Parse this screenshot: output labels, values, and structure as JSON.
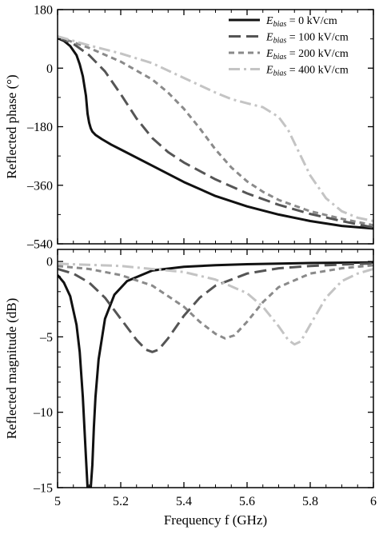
{
  "chart_data": [
    {
      "type": "line",
      "ylabel": "Reflected phase (°)",
      "xlim": [
        5,
        6
      ],
      "ylim": [
        -540,
        180
      ],
      "yticks": [
        180,
        0,
        -180,
        -360,
        -540
      ],
      "ytick_labels": [
        "180",
        "0",
        "–180",
        "–360",
        "–540"
      ],
      "legend_position": "top-right",
      "series": [
        {
          "key": "e0",
          "color": "#111111",
          "dash": "solid",
          "legend": {
            "sym": "E",
            "sub": "bias",
            "rest": " = 0 kV/cm"
          },
          "x": [
            5.0,
            5.02,
            5.04,
            5.06,
            5.07,
            5.08,
            5.09,
            5.095,
            5.1,
            5.105,
            5.11,
            5.12,
            5.14,
            5.17,
            5.2,
            5.3,
            5.4,
            5.5,
            5.6,
            5.7,
            5.8,
            5.9,
            6.0
          ],
          "y": [
            92,
            84,
            68,
            40,
            12,
            -25,
            -85,
            -140,
            -168,
            -185,
            -195,
            -205,
            -218,
            -235,
            -250,
            -300,
            -350,
            -393,
            -425,
            -450,
            -470,
            -485,
            -493
          ]
        },
        {
          "key": "e100",
          "color": "#555555",
          "dash": "long",
          "legend": {
            "sym": "E",
            "sub": "bias",
            "rest": " = 100 kV/cm"
          },
          "x": [
            5.0,
            5.05,
            5.1,
            5.15,
            5.2,
            5.25,
            5.3,
            5.35,
            5.4,
            5.5,
            5.6,
            5.7,
            5.8,
            5.9,
            6.0
          ],
          "y": [
            95,
            75,
            40,
            -10,
            -80,
            -155,
            -215,
            -258,
            -290,
            -342,
            -385,
            -420,
            -448,
            -470,
            -490
          ]
        },
        {
          "key": "e200",
          "color": "#8a8a8a",
          "dash": "short",
          "legend": {
            "sym": "E",
            "sub": "bias",
            "rest": " = 200 kV/cm"
          },
          "x": [
            5.0,
            5.1,
            5.2,
            5.3,
            5.35,
            5.4,
            5.45,
            5.5,
            5.55,
            5.6,
            5.65,
            5.7,
            5.8,
            5.9,
            6.0
          ],
          "y": [
            97,
            62,
            20,
            -35,
            -75,
            -125,
            -185,
            -250,
            -305,
            -348,
            -380,
            -405,
            -440,
            -463,
            -483
          ]
        },
        {
          "key": "e400",
          "color": "#c4c4c4",
          "dash": "dashdot",
          "legend": {
            "sym": "E",
            "sub": "bias",
            "rest": " = 400 kV/cm"
          },
          "x": [
            5.0,
            5.1,
            5.2,
            5.3,
            5.4,
            5.5,
            5.55,
            5.6,
            5.65,
            5.7,
            5.73,
            5.76,
            5.8,
            5.85,
            5.9,
            5.95,
            6.0
          ],
          "y": [
            98,
            70,
            45,
            15,
            -30,
            -75,
            -95,
            -108,
            -120,
            -150,
            -190,
            -250,
            -330,
            -400,
            -440,
            -460,
            -470
          ]
        }
      ]
    },
    {
      "type": "line",
      "xlabel": "Frequency f (GHz)",
      "ylabel": "Reflected magnitude (dB)",
      "xlim": [
        5,
        6
      ],
      "ylim": [
        -15,
        0.8
      ],
      "xticks": [
        5,
        5.2,
        5.4,
        5.6,
        5.8,
        6
      ],
      "xtick_labels": [
        "5",
        "5.2",
        "5.4",
        "5.6",
        "5.8",
        "6"
      ],
      "yticks": [
        0,
        -5,
        -10,
        -15
      ],
      "ytick_labels": [
        "0",
        "–5",
        "–10",
        "–15"
      ],
      "series": [
        {
          "key": "e0",
          "color": "#111111",
          "dash": "solid",
          "x": [
            5.0,
            5.02,
            5.04,
            5.06,
            5.07,
            5.08,
            5.09,
            5.095,
            5.1,
            5.105,
            5.11,
            5.115,
            5.12,
            5.13,
            5.15,
            5.18,
            5.22,
            5.3,
            5.4,
            5.5,
            5.6,
            5.8,
            6.0
          ],
          "y": [
            -0.9,
            -1.4,
            -2.3,
            -4.2,
            -6.0,
            -9.0,
            -13.0,
            -15.0,
            -15.0,
            -15.0,
            -13.5,
            -11.0,
            -9.0,
            -6.5,
            -3.8,
            -2.2,
            -1.3,
            -0.6,
            -0.35,
            -0.25,
            -0.18,
            -0.1,
            -0.06
          ]
        },
        {
          "key": "e100",
          "color": "#555555",
          "dash": "long",
          "x": [
            5.0,
            5.05,
            5.1,
            5.15,
            5.2,
            5.25,
            5.28,
            5.3,
            5.32,
            5.35,
            5.4,
            5.45,
            5.5,
            5.6,
            5.7,
            5.8,
            5.9,
            6.0
          ],
          "y": [
            -0.5,
            -0.8,
            -1.4,
            -2.4,
            -3.8,
            -5.2,
            -5.85,
            -6.0,
            -5.85,
            -5.1,
            -3.6,
            -2.4,
            -1.6,
            -0.8,
            -0.45,
            -0.3,
            -0.2,
            -0.12
          ]
        },
        {
          "key": "e200",
          "color": "#8a8a8a",
          "dash": "short",
          "x": [
            5.0,
            5.1,
            5.2,
            5.3,
            5.4,
            5.45,
            5.5,
            5.53,
            5.56,
            5.6,
            5.65,
            5.7,
            5.8,
            5.9,
            6.0
          ],
          "y": [
            -0.3,
            -0.5,
            -0.9,
            -1.6,
            -3.0,
            -4.0,
            -4.8,
            -5.1,
            -4.9,
            -4.0,
            -2.7,
            -1.7,
            -0.8,
            -0.45,
            -0.25
          ]
        },
        {
          "key": "e400",
          "color": "#c4c4c4",
          "dash": "dashdot",
          "x": [
            5.0,
            5.2,
            5.4,
            5.5,
            5.6,
            5.65,
            5.7,
            5.73,
            5.75,
            5.77,
            5.8,
            5.85,
            5.9,
            5.95,
            6.0
          ],
          "y": [
            -0.15,
            -0.3,
            -0.7,
            -1.2,
            -2.1,
            -3.0,
            -4.3,
            -5.2,
            -5.5,
            -5.3,
            -4.2,
            -2.4,
            -1.3,
            -0.8,
            -0.5
          ]
        }
      ]
    }
  ]
}
